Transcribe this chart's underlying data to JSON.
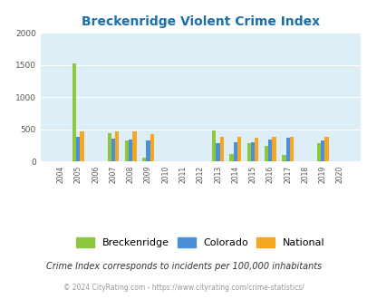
{
  "title": "Breckenridge Violent Crime Index",
  "title_color": "#1a6faf",
  "years": [
    2004,
    2005,
    2006,
    2007,
    2008,
    2009,
    2010,
    2011,
    2012,
    2013,
    2014,
    2015,
    2016,
    2017,
    2018,
    2019,
    2020
  ],
  "breckenridge": [
    0,
    1520,
    0,
    440,
    320,
    60,
    0,
    0,
    0,
    480,
    120,
    290,
    240,
    100,
    0,
    290,
    0
  ],
  "colorado": [
    0,
    390,
    0,
    355,
    345,
    330,
    0,
    0,
    0,
    290,
    300,
    305,
    345,
    370,
    0,
    330,
    0
  ],
  "national": [
    0,
    470,
    0,
    470,
    465,
    430,
    0,
    0,
    0,
    390,
    380,
    375,
    385,
    390,
    0,
    380,
    0
  ],
  "bar_width": 0.22,
  "color_breckenridge": "#8dc63f",
  "color_colorado": "#4a90d9",
  "color_national": "#f5a623",
  "bg_color": "#ddeef6",
  "ylim": [
    0,
    2000
  ],
  "yticks": [
    0,
    500,
    1000,
    1500,
    2000
  ],
  "legend_labels": [
    "Breckenridge",
    "Colorado",
    "National"
  ],
  "footnote1": "Crime Index corresponds to incidents per 100,000 inhabitants",
  "footnote2": "© 2024 CityRating.com - https://www.cityrating.com/crime-statistics/",
  "footnote1_color": "#333333",
  "footnote2_color": "#999999"
}
